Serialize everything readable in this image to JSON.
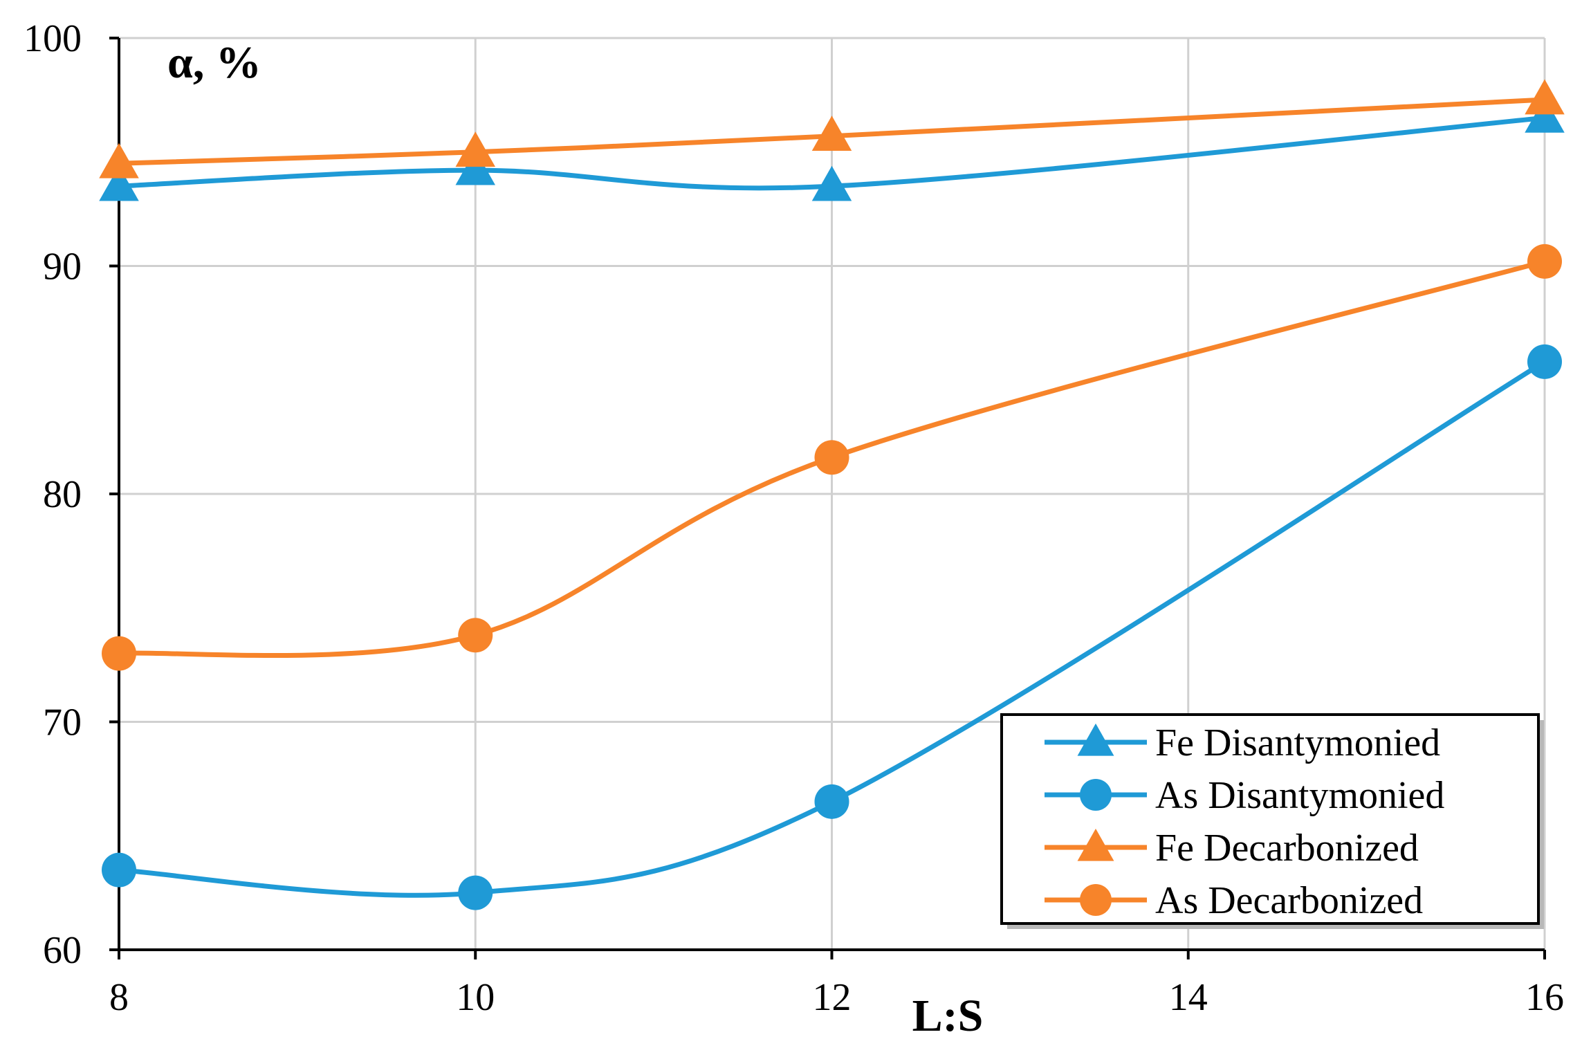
{
  "chart_data": {
    "type": "line",
    "x": [
      8,
      10,
      12,
      16
    ],
    "xlabel": "L:S",
    "ylabel": "α, %",
    "xlim": [
      8,
      16
    ],
    "ylim": [
      60,
      100
    ],
    "x_ticks": [
      "8",
      "10",
      "12",
      "14",
      "16"
    ],
    "y_ticks": [
      "60",
      "70",
      "80",
      "90",
      "100"
    ],
    "grid": true,
    "legend_position": "bottom-right",
    "series": [
      {
        "name": "Fe Disantymonied",
        "values": [
          93.5,
          94.2,
          93.5,
          96.5
        ],
        "color": "#1f9ad6",
        "marker": "triangle"
      },
      {
        "name": "As Disantymonied",
        "values": [
          63.5,
          62.5,
          66.5,
          85.8
        ],
        "color": "#1f9ad6",
        "marker": "circle"
      },
      {
        "name": "Fe Decarbonized",
        "values": [
          94.5,
          95.0,
          95.7,
          97.3
        ],
        "color": "#f7842a",
        "marker": "triangle"
      },
      {
        "name": "As Decarbonized",
        "values": [
          73.0,
          73.8,
          81.6,
          90.2
        ],
        "color": "#f7842a",
        "marker": "circle"
      }
    ]
  }
}
